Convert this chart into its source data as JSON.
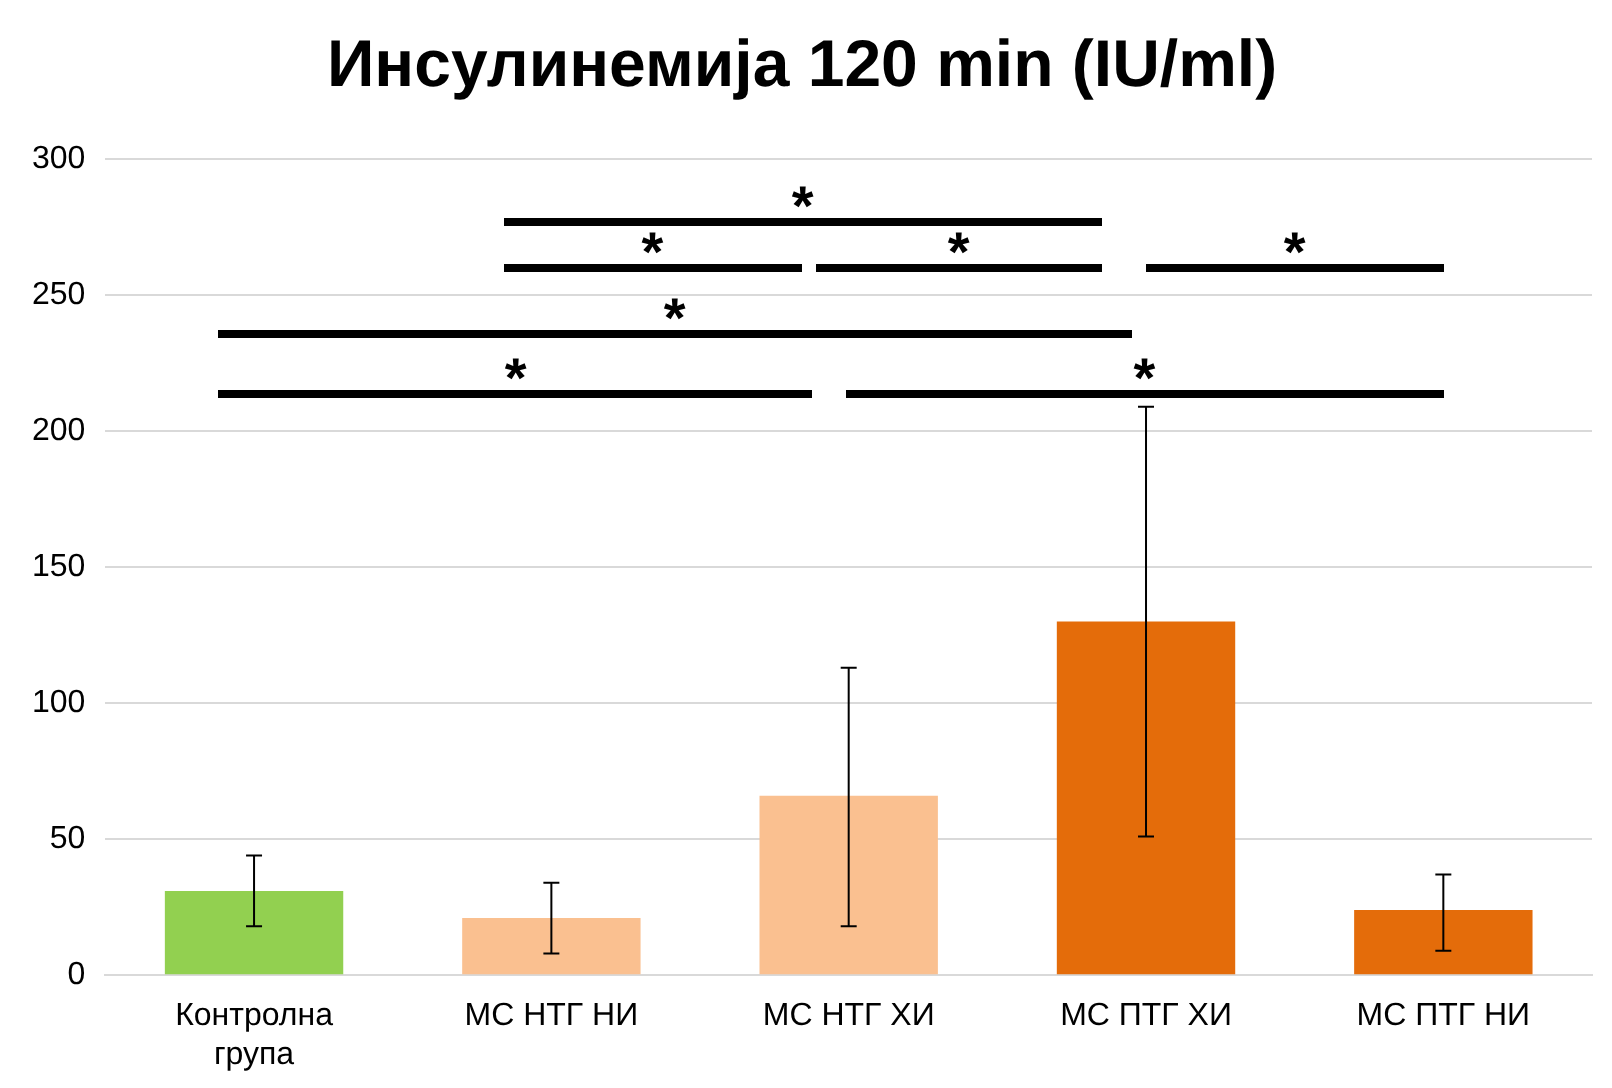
{
  "chart_data": {
    "type": "bar",
    "title": "Инсулинемија 120 min (IU/ml)",
    "categories": [
      "Контролна група",
      "МС НТГ НИ",
      "МС НТГ ХИ",
      "МС ПТГ ХИ",
      "МС ПТГ НИ"
    ],
    "values": [
      31,
      21,
      66,
      130,
      24
    ],
    "colors": [
      "#92d050",
      "#fac090",
      "#fac090",
      "#e46c0a",
      "#e46c0a"
    ],
    "errors": [
      [
        18,
        44
      ],
      [
        8,
        34
      ],
      [
        18,
        113
      ],
      [
        51,
        209
      ],
      [
        9,
        37
      ]
    ],
    "ylim": [
      0,
      300
    ],
    "yticks": [
      0,
      50,
      100,
      150,
      200,
      250,
      300
    ],
    "grid": "y",
    "legend": false,
    "annotations": [
      "*",
      "*",
      "*",
      "*",
      "*",
      "*",
      "*"
    ]
  }
}
